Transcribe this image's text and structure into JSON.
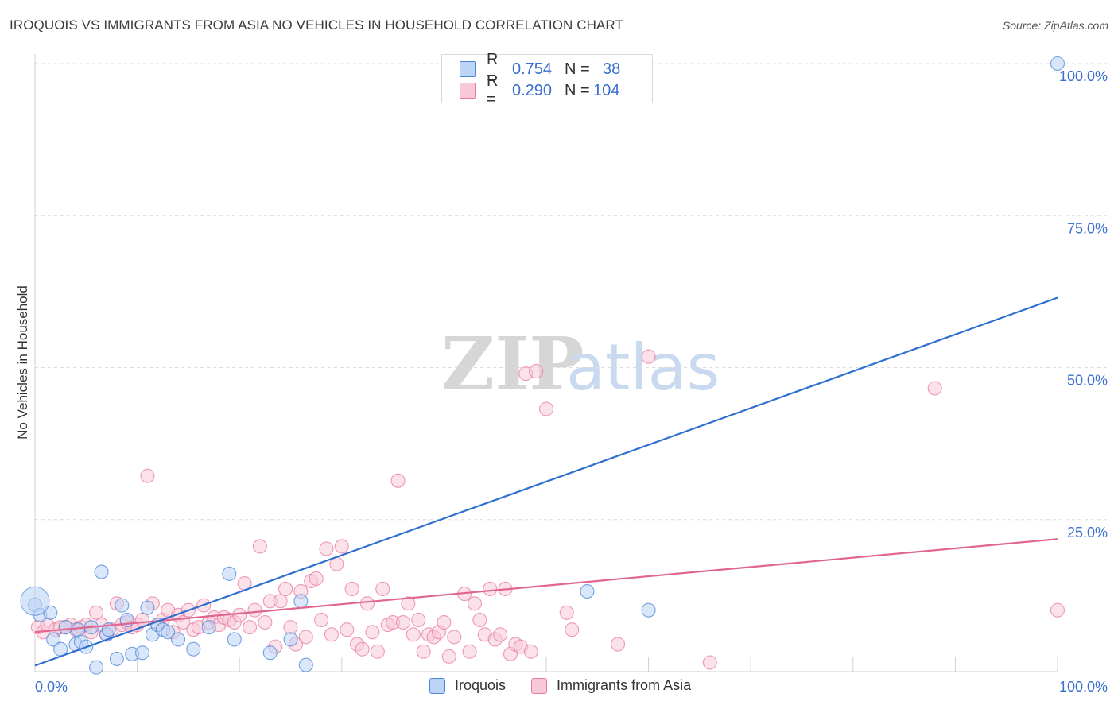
{
  "title": "IROQUOIS VS IMMIGRANTS FROM ASIA NO VEHICLES IN HOUSEHOLD CORRELATION CHART",
  "source": "Source: ZipAtlas.com",
  "colors": {
    "blue": "#4a86d8",
    "blue_fill": "#bcd4f5",
    "blue_line": "#2f6fd0",
    "pink": "#e87aa0",
    "pink_fill": "#f8c8d6",
    "pink_line": "#e06690",
    "value_text": "#3a6fd0"
  },
  "legend_top": {
    "rows": [
      {
        "series": "Iroquois",
        "r_label": "R =",
        "r_value": "0.754",
        "n_label": "N =",
        "n_value": "38"
      },
      {
        "series": "Immigrants from Asia",
        "r_label": "R =",
        "r_value": "0.290",
        "n_label": "N =",
        "n_value": "104"
      }
    ]
  },
  "legend_bottom": {
    "items": [
      "Iroquois",
      "Immigrants from Asia"
    ]
  },
  "chart_data": {
    "type": "scatter",
    "title": "IROQUOIS VS IMMIGRANTS FROM ASIA NO VEHICLES IN HOUSEHOLD CORRELATION CHART",
    "xlabel": "",
    "ylabel": "No Vehicles in Household",
    "xlim": [
      0,
      100
    ],
    "ylim": [
      0,
      100
    ],
    "x_tick_labels": [
      "0.0%",
      "100.0%"
    ],
    "y_tick_labels": [
      "25.0%",
      "50.0%",
      "75.0%",
      "100.0%"
    ],
    "y_ticks": [
      25,
      50,
      75,
      100
    ],
    "watermark": "ZIPatlas",
    "series": [
      {
        "name": "Iroquois",
        "color": "#4a86d8",
        "trendline": {
          "x": [
            0,
            100
          ],
          "y": [
            1.0,
            61.5
          ]
        },
        "points": [
          [
            0,
            11
          ],
          [
            0.5,
            9.3
          ],
          [
            1.5,
            9.7
          ],
          [
            1.8,
            5.3
          ],
          [
            2.5,
            3.7
          ],
          [
            3,
            7.3
          ],
          [
            4,
            4.5
          ],
          [
            4.2,
            6.9
          ],
          [
            4.5,
            4.9
          ],
          [
            5,
            4.1
          ],
          [
            5.5,
            7.3
          ],
          [
            6,
            0.7
          ],
          [
            6.5,
            16.4
          ],
          [
            7,
            6.1
          ],
          [
            7.2,
            6.9
          ],
          [
            8,
            2.1
          ],
          [
            8.5,
            10.9
          ],
          [
            9,
            8.5
          ],
          [
            9.5,
            2.9
          ],
          [
            10.5,
            3.1
          ],
          [
            11,
            10.5
          ],
          [
            11.5,
            6.1
          ],
          [
            12,
            7.7
          ],
          [
            12.5,
            6.9
          ],
          [
            13,
            6.5
          ],
          [
            14,
            5.3
          ],
          [
            15.5,
            3.7
          ],
          [
            17,
            7.3
          ],
          [
            19,
            16.1
          ],
          [
            19.5,
            5.3
          ],
          [
            23,
            3.1
          ],
          [
            25,
            5.3
          ],
          [
            26,
            11.6
          ],
          [
            26.5,
            1.1
          ],
          [
            54,
            13.2
          ],
          [
            60,
            10.1
          ],
          [
            100,
            100
          ]
        ]
      },
      {
        "name": "Immigrants from Asia",
        "color": "#e87aa0",
        "trendline": {
          "x": [
            0,
            100
          ],
          "y": [
            6.5,
            21.8
          ]
        },
        "points": [
          [
            0.3,
            7.3
          ],
          [
            0.8,
            6.5
          ],
          [
            1.2,
            7.7
          ],
          [
            2,
            6.9
          ],
          [
            2.5,
            7.3
          ],
          [
            3,
            7.3
          ],
          [
            3.5,
            7.7
          ],
          [
            4,
            6.9
          ],
          [
            4.5,
            7.3
          ],
          [
            5,
            7.7
          ],
          [
            5.5,
            6.5
          ],
          [
            6,
            9.7
          ],
          [
            6.5,
            7.7
          ],
          [
            7,
            6.1
          ],
          [
            7.5,
            6.9
          ],
          [
            8,
            11.2
          ],
          [
            8.5,
            7.7
          ],
          [
            9,
            8.1
          ],
          [
            9.5,
            7.3
          ],
          [
            10,
            7.7
          ],
          [
            10.5,
            8.5
          ],
          [
            11,
            32.2
          ],
          [
            11.5,
            11.2
          ],
          [
            12,
            7.7
          ],
          [
            12.5,
            8.5
          ],
          [
            13,
            10.1
          ],
          [
            13.5,
            6.5
          ],
          [
            14,
            9.3
          ],
          [
            14.5,
            8.1
          ],
          [
            15,
            10.1
          ],
          [
            15.5,
            6.9
          ],
          [
            16,
            7.3
          ],
          [
            16.5,
            10.9
          ],
          [
            17,
            8.1
          ],
          [
            17.5,
            8.9
          ],
          [
            18,
            7.7
          ],
          [
            18.5,
            8.9
          ],
          [
            19,
            8.5
          ],
          [
            19.5,
            8.1
          ],
          [
            20,
            9.3
          ],
          [
            20.5,
            14.5
          ],
          [
            21,
            7.3
          ],
          [
            21.5,
            10.1
          ],
          [
            22,
            20.6
          ],
          [
            22.5,
            8.1
          ],
          [
            23,
            11.6
          ],
          [
            23.5,
            4.1
          ],
          [
            24,
            11.6
          ],
          [
            24.5,
            13.6
          ],
          [
            25,
            7.3
          ],
          [
            25.5,
            4.5
          ],
          [
            26,
            13.2
          ],
          [
            26.5,
            5.7
          ],
          [
            27,
            14.9
          ],
          [
            27.5,
            15.3
          ],
          [
            28,
            8.5
          ],
          [
            28.5,
            20.2
          ],
          [
            29,
            6.1
          ],
          [
            29.5,
            17.7
          ],
          [
            30,
            20.6
          ],
          [
            30.5,
            6.9
          ],
          [
            31,
            13.6
          ],
          [
            31.5,
            4.5
          ],
          [
            32,
            3.7
          ],
          [
            32.5,
            11.2
          ],
          [
            33,
            6.5
          ],
          [
            33.5,
            3.3
          ],
          [
            34,
            13.6
          ],
          [
            34.5,
            7.7
          ],
          [
            35,
            8.1
          ],
          [
            35.5,
            31.4
          ],
          [
            36,
            8.1
          ],
          [
            36.5,
            11.2
          ],
          [
            37,
            6.1
          ],
          [
            37.5,
            8.5
          ],
          [
            38,
            3.3
          ],
          [
            38.5,
            6.1
          ],
          [
            39,
            5.7
          ],
          [
            39.5,
            6.5
          ],
          [
            40,
            8.1
          ],
          [
            40.5,
            2.5
          ],
          [
            41,
            5.7
          ],
          [
            42,
            12.8
          ],
          [
            42.5,
            3.3
          ],
          [
            43,
            11.2
          ],
          [
            43.5,
            8.5
          ],
          [
            44,
            6.1
          ],
          [
            44.5,
            13.6
          ],
          [
            45,
            5.3
          ],
          [
            45.5,
            6.1
          ],
          [
            46,
            13.6
          ],
          [
            46.5,
            2.9
          ],
          [
            47,
            4.5
          ],
          [
            47.5,
            4.1
          ],
          [
            48,
            49.0
          ],
          [
            48.5,
            3.3
          ],
          [
            49,
            49.4
          ],
          [
            50,
            43.2
          ],
          [
            52,
            9.7
          ],
          [
            52.5,
            6.9
          ],
          [
            57,
            4.5
          ],
          [
            60,
            51.8
          ],
          [
            66,
            1.5
          ],
          [
            88,
            46.6
          ],
          [
            100,
            10.1
          ]
        ]
      }
    ]
  }
}
